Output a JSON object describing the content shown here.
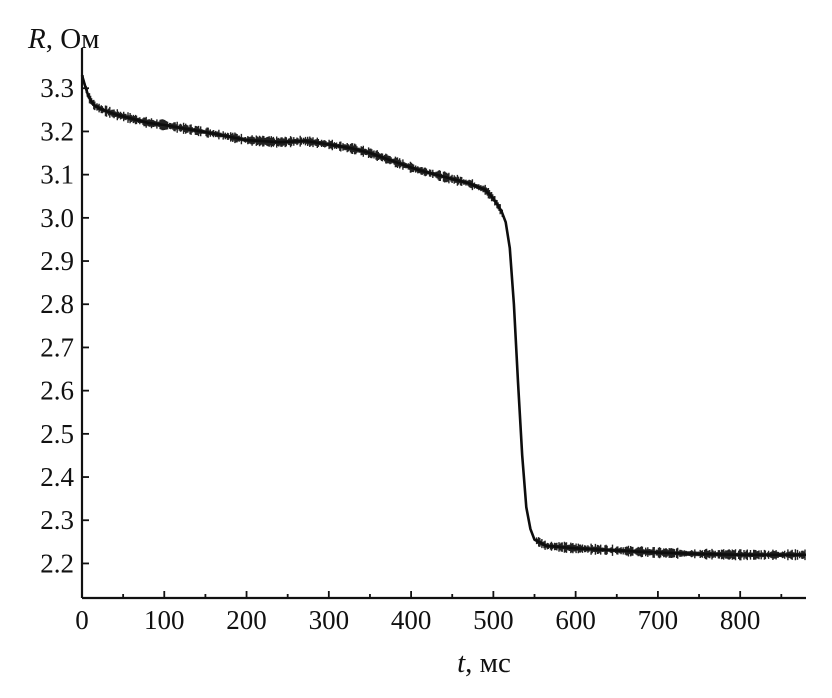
{
  "chart_data": {
    "type": "line",
    "title": "",
    "xlabel": {
      "var": "t",
      "unit": ", мс"
    },
    "ylabel": {
      "var": "R",
      "unit": ", Ом"
    },
    "xlim": [
      0,
      880
    ],
    "ylim": [
      2.12,
      3.37
    ],
    "xticks": [
      0,
      100,
      200,
      300,
      400,
      500,
      600,
      700,
      800
    ],
    "xtick_labels": [
      "0",
      "100",
      "200",
      "300",
      "400",
      "500",
      "600",
      "700",
      "800"
    ],
    "yticks": [
      2.2,
      2.3,
      2.4,
      2.5,
      2.6,
      2.7,
      2.8,
      2.9,
      3.0,
      3.1,
      3.2,
      3.3
    ],
    "ytick_labels": [
      "2.2",
      "2.3",
      "2.4",
      "2.5",
      "2.6",
      "2.7",
      "2.8",
      "2.9",
      "3.0",
      "3.1",
      "3.2",
      "3.3"
    ],
    "grid": false,
    "legend": "none",
    "noisy_signal": true,
    "series": [
      {
        "x": [
          0,
          3,
          8,
          15,
          25,
          40,
          60,
          80,
          100,
          130,
          160,
          200,
          240,
          270,
          300,
          330,
          350,
          380,
          410,
          440,
          470,
          490,
          500,
          505,
          510,
          515,
          520,
          525,
          530,
          535,
          540,
          545,
          550,
          555,
          560,
          565,
          570,
          600,
          650,
          700,
          750,
          800,
          850,
          880
        ],
        "y": [
          3.33,
          3.31,
          3.28,
          3.26,
          3.25,
          3.24,
          3.23,
          3.22,
          3.215,
          3.205,
          3.195,
          3.18,
          3.175,
          3.178,
          3.17,
          3.16,
          3.15,
          3.13,
          3.11,
          3.095,
          3.08,
          3.065,
          3.045,
          3.03,
          3.015,
          2.99,
          2.93,
          2.8,
          2.62,
          2.45,
          2.33,
          2.28,
          2.255,
          2.25,
          2.245,
          2.24,
          2.24,
          2.235,
          2.23,
          2.225,
          2.222,
          2.22,
          2.22,
          2.22
        ]
      }
    ]
  }
}
